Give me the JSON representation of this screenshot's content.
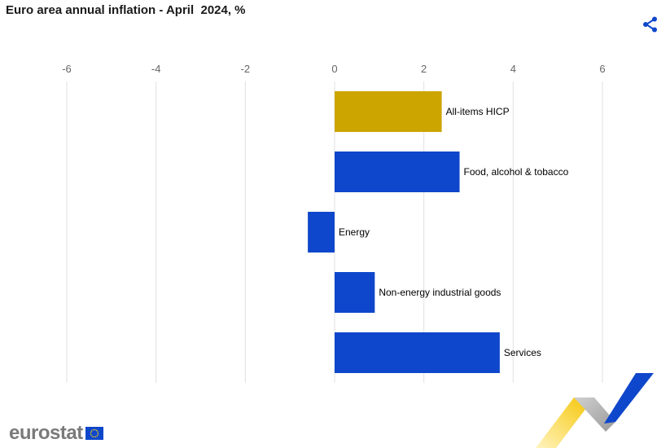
{
  "header": {
    "title": "Euro area annual inflation - April  2024, %",
    "share_icon": "share-icon"
  },
  "brand": {
    "logo_text": "eurostat",
    "flag_icon": "eu-flag-icon"
  },
  "colors": {
    "highlight": "#cca500",
    "bar": "#0e47cb",
    "grid": "#e0e0e0",
    "share": "#0e47cb"
  },
  "chart_data": {
    "type": "bar",
    "orientation": "horizontal",
    "title": "Euro area annual inflation - April  2024, %",
    "categories": [
      "All-items HICP",
      "Food, alcohol & tobacco",
      "Energy",
      "Non-energy industrial goods",
      "Services"
    ],
    "values": [
      2.4,
      2.8,
      -0.6,
      0.9,
      3.7
    ],
    "highlight_index": 0,
    "xlim": [
      -6,
      7
    ],
    "xticks": [
      -6,
      -4,
      -2,
      0,
      2,
      4,
      6
    ],
    "axis_position": "top",
    "grid": true,
    "legend": "none"
  }
}
